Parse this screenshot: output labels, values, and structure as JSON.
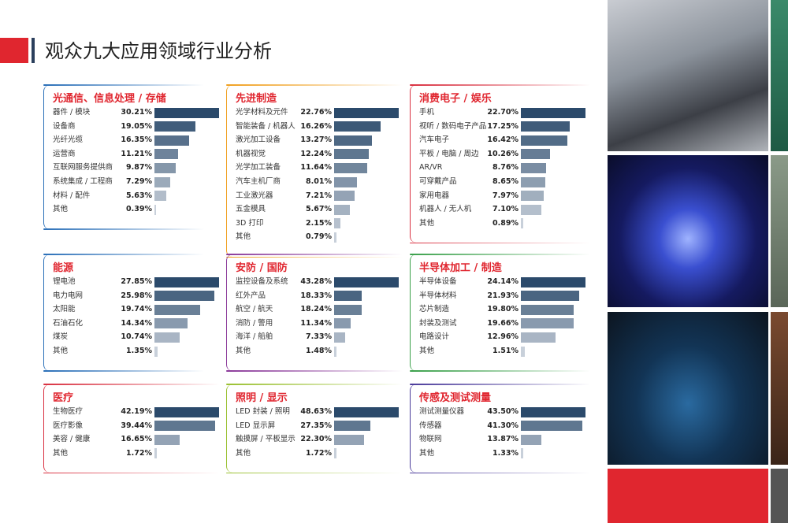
{
  "header": {
    "title": "观众九大应用领域行业分析"
  },
  "panels": [
    {
      "title": "光通信、信息处理 / 存储",
      "categories": [
        "器件 / 模块",
        "设备商",
        "光纤光缆",
        "运营商",
        "互联网服务提供商",
        "系统集成 / 工程商",
        "材料 / 配件",
        "其他"
      ],
      "values": [
        30.21,
        19.05,
        16.35,
        11.21,
        9.87,
        7.29,
        5.63,
        0.39
      ],
      "value_labels": [
        "30.21%",
        "19.05%",
        "16.35%",
        "11.21%",
        "9.87%",
        "7.29%",
        "5.63%",
        "0.39%"
      ]
    },
    {
      "title": "先进制造",
      "categories": [
        "光学材料及元件",
        "智能装备 / 机器人",
        "激光加工设备",
        "机器视觉",
        "光学加工装备",
        "汽车主机厂商",
        "工业激光器",
        "五金模具",
        "3D 打印",
        "其他"
      ],
      "values": [
        22.76,
        16.26,
        13.27,
        12.24,
        11.64,
        8.01,
        7.21,
        5.67,
        2.15,
        0.79
      ],
      "value_labels": [
        "22.76%",
        "16.26%",
        "13.27%",
        "12.24%",
        "11.64%",
        "8.01%",
        "7.21%",
        "5.67%",
        "2.15%",
        "0.79%"
      ]
    },
    {
      "title": "消费电子 / 娱乐",
      "categories": [
        "手机",
        "视听 / 数码电子产品",
        "汽车电子",
        "平板 / 电脑 / 周边",
        "AR/VR",
        "可穿戴产品",
        "家用电器",
        "机器人 / 无人机",
        "其他"
      ],
      "values": [
        22.7,
        17.25,
        16.42,
        10.26,
        8.76,
        8.65,
        7.97,
        7.1,
        0.89
      ],
      "value_labels": [
        "22.70%",
        "17.25%",
        "16.42%",
        "10.26%",
        "8.76%",
        "8.65%",
        "7.97%",
        "7.10%",
        "0.89%"
      ]
    },
    {
      "title": "能源",
      "categories": [
        "锂电池",
        "电力电网",
        "太阳能",
        "石油石化",
        "煤炭",
        "其他"
      ],
      "values": [
        27.85,
        25.98,
        19.74,
        14.34,
        10.74,
        1.35
      ],
      "value_labels": [
        "27.85%",
        "25.98%",
        "19.74%",
        "14.34%",
        "10.74%",
        "1.35%"
      ]
    },
    {
      "title": "安防 / 国防",
      "categories": [
        "监控设备及系统",
        "红外产品",
        "航空 / 航天",
        "消防 / 警用",
        "海洋 / 船舶",
        "其他"
      ],
      "values": [
        43.28,
        18.33,
        18.24,
        11.34,
        7.33,
        1.48
      ],
      "value_labels": [
        "43.28%",
        "18.33%",
        "18.24%",
        "11.34%",
        "7.33%",
        "1.48%"
      ]
    },
    {
      "title": "半导体加工 / 制造",
      "categories": [
        "半导体设备",
        "半导体材料",
        "芯片制造",
        "封装及测试",
        "电路设计",
        "其他"
      ],
      "values": [
        24.14,
        21.93,
        19.8,
        19.66,
        12.96,
        1.51
      ],
      "value_labels": [
        "24.14%",
        "21.93%",
        "19.80%",
        "19.66%",
        "12.96%",
        "1.51%"
      ]
    },
    {
      "title": "医疗",
      "categories": [
        "生物医疗",
        "医疗影像",
        "美容 / 健康",
        "其他"
      ],
      "values": [
        42.19,
        39.44,
        16.65,
        1.72
      ],
      "value_labels": [
        "42.19%",
        "39.44%",
        "16.65%",
        "1.72%"
      ]
    },
    {
      "title": "照明 / 显示",
      "categories": [
        "LED 封装 / 照明",
        "LED 显示屏",
        "触摸屏 / 平板显示",
        "其他"
      ],
      "values": [
        48.63,
        27.35,
        22.3,
        1.72
      ],
      "value_labels": [
        "48.63%",
        "27.35%",
        "22.30%",
        "1.72%"
      ]
    },
    {
      "title": "传感及测试测量",
      "categories": [
        "测试测量仪器",
        "传感器",
        "物联网",
        "其他"
      ],
      "values": [
        43.5,
        41.3,
        13.87,
        1.33
      ],
      "value_labels": [
        "43.50%",
        "41.30%",
        "13.87%",
        "1.33%"
      ]
    }
  ]
}
